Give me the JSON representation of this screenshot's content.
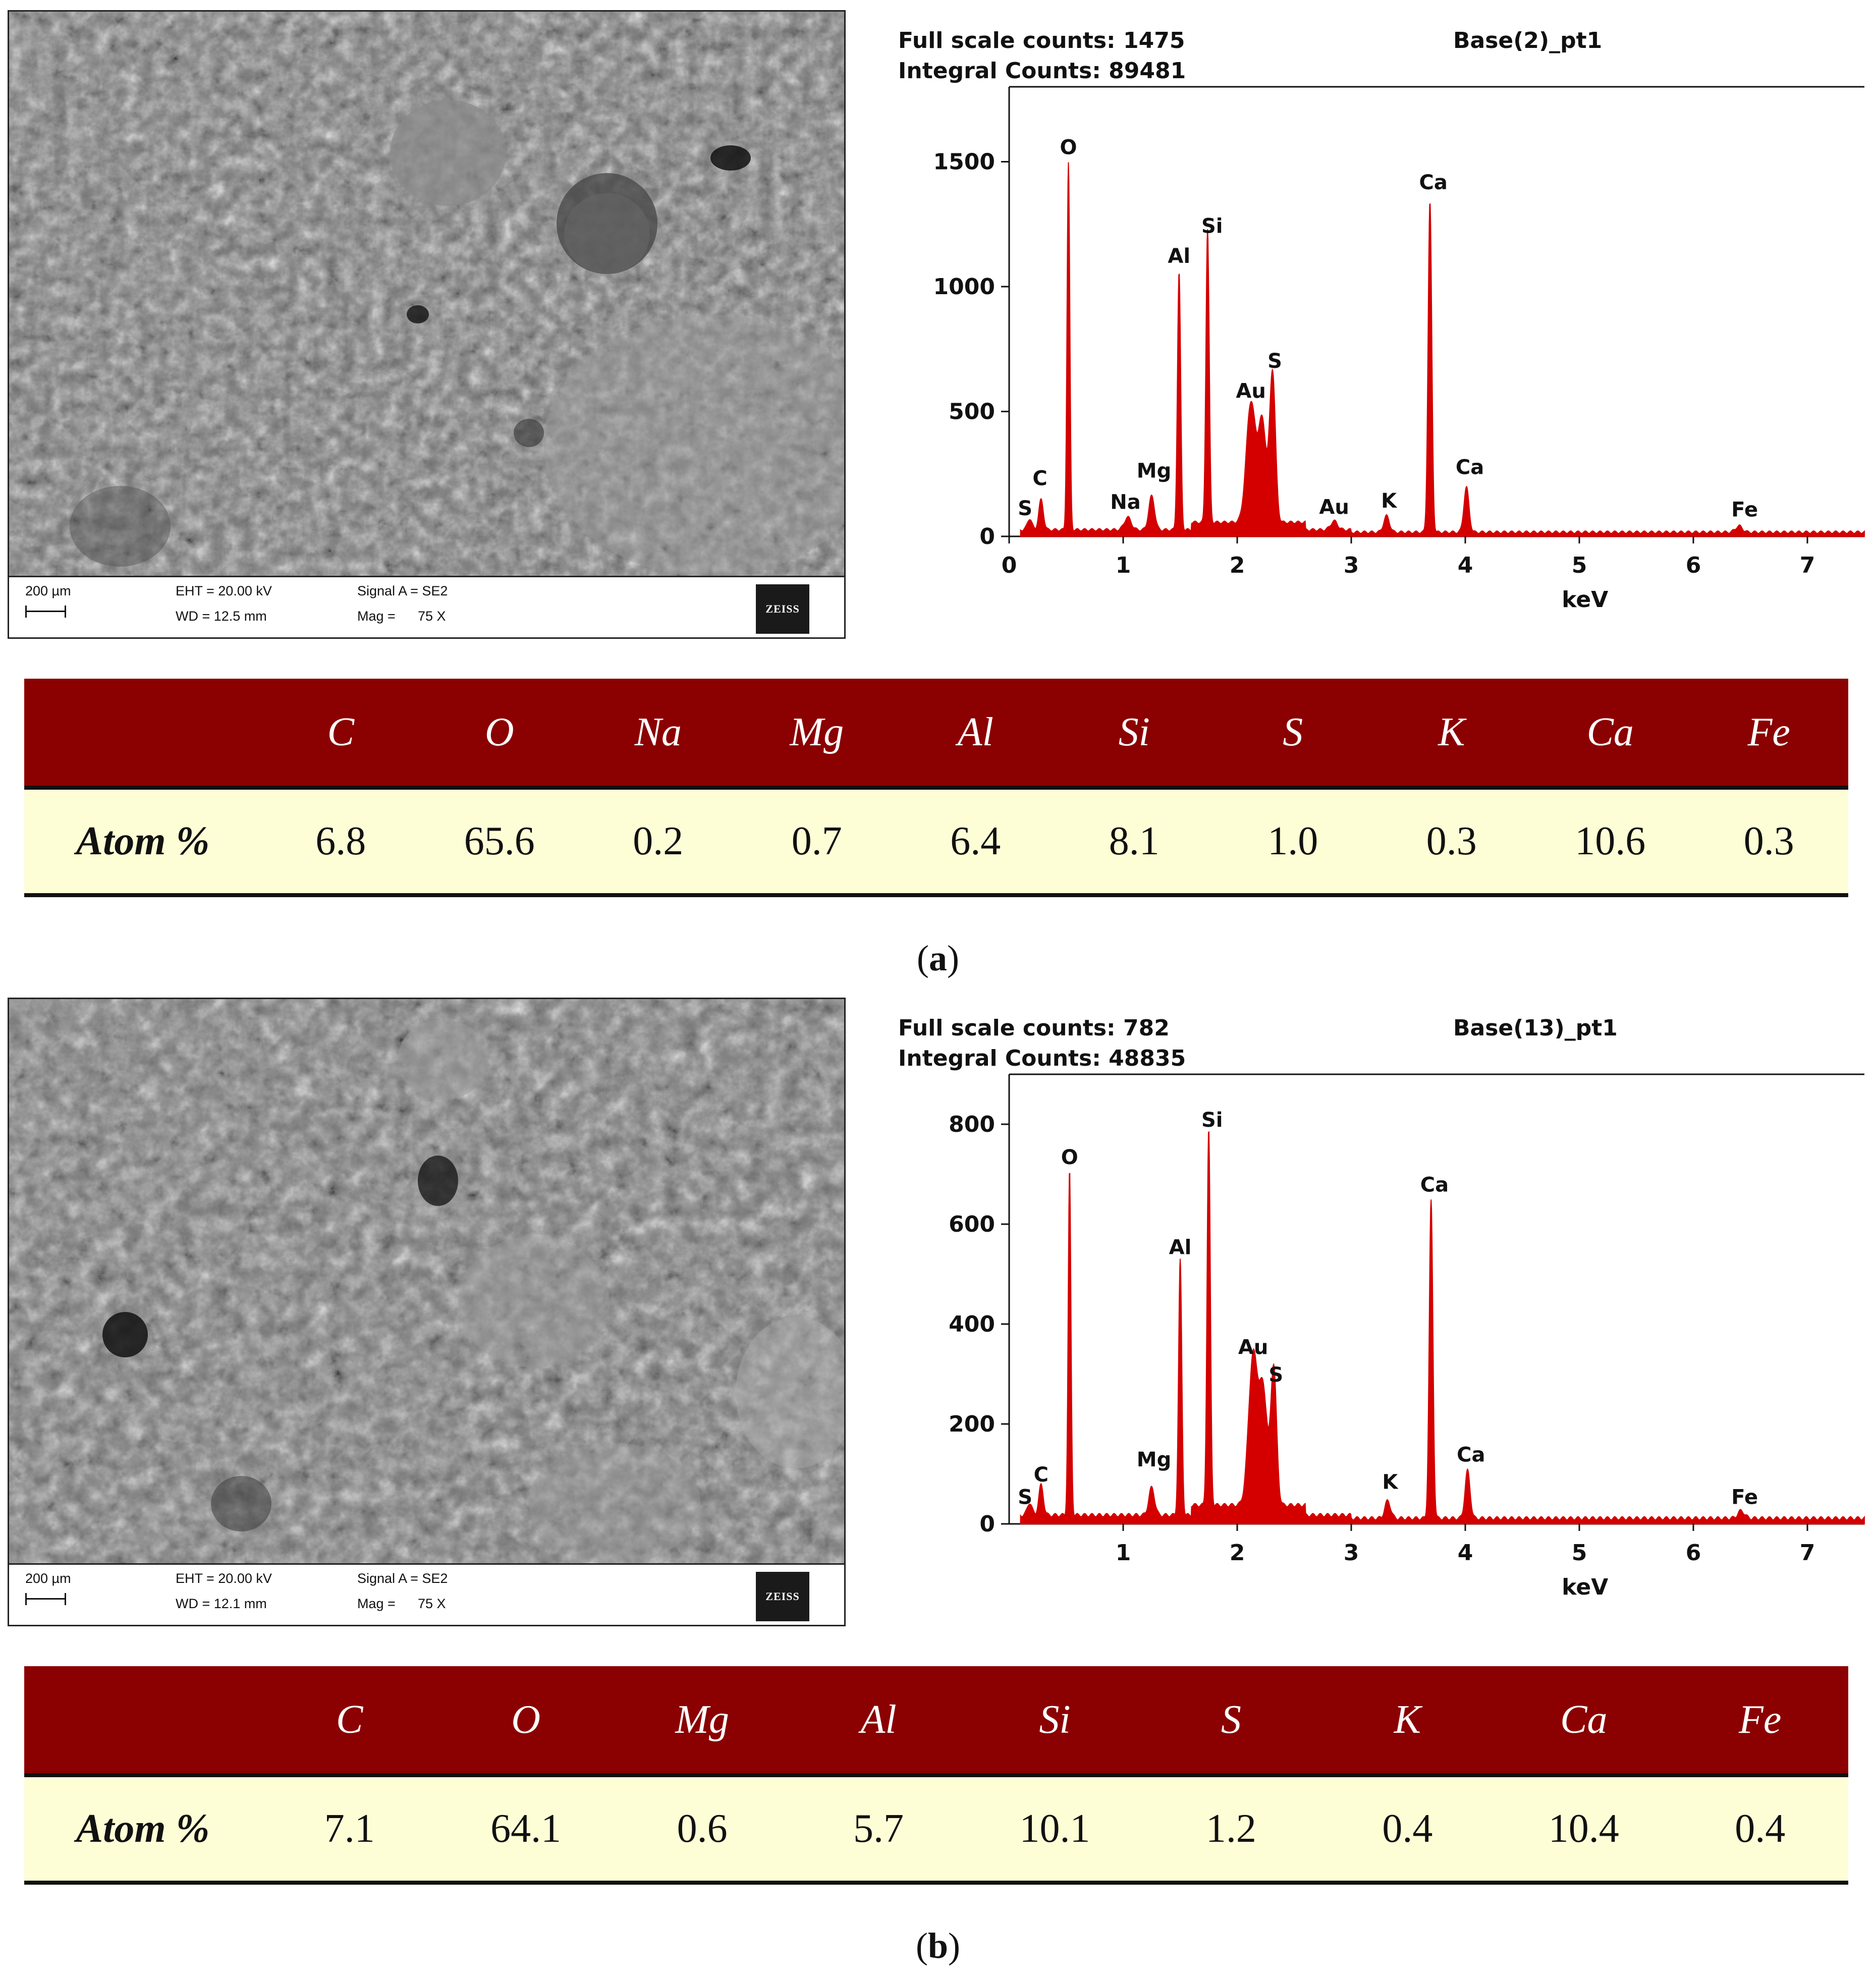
{
  "panels": [
    {
      "caption": "a",
      "sem": {
        "scale_label": "200 µm",
        "eht": "EHT = 20.00 kV",
        "wd": "WD = 12.5 mm",
        "signal": "Signal A = SE2",
        "mag_label": "Mag =",
        "mag_value": "75 X",
        "logo": "ZEISS"
      },
      "table": {
        "row_label": "Atom %",
        "elements": [
          "C",
          "O",
          "Na",
          "Mg",
          "Al",
          "Si",
          "S",
          "K",
          "Ca",
          "Fe"
        ],
        "values": [
          "6.8",
          "65.6",
          "0.2",
          "0.7",
          "6.4",
          "8.1",
          "1.0",
          "0.3",
          "10.6",
          "0.3"
        ]
      }
    },
    {
      "caption": "b",
      "sem": {
        "scale_label": "200 µm",
        "eht": "EHT = 20.00 kV",
        "wd": "WD = 12.1 mm",
        "signal": "Signal A = SE2",
        "mag_label": "Mag =",
        "mag_value": "75 X",
        "logo": "ZEISS"
      },
      "table": {
        "row_label": "Atom %",
        "elements": [
          "C",
          "O",
          "Mg",
          "Al",
          "Si",
          "S",
          "K",
          "Ca",
          "Fe"
        ],
        "values": [
          "7.1",
          "64.1",
          "0.6",
          "5.7",
          "10.1",
          "1.2",
          "0.4",
          "10.4",
          "0.4"
        ]
      }
    }
  ],
  "chart_data": [
    {
      "type": "area",
      "header_left_1": "Full scale counts: 1475",
      "header_left_2": "Integral Counts: 89481",
      "header_right": "Base(2)_pt1",
      "xlabel": "keV",
      "xlim": [
        0,
        7.5
      ],
      "ylim": [
        0,
        1800
      ],
      "xticks": [
        0,
        1,
        2,
        3,
        4,
        5,
        6,
        7
      ],
      "yticks": [
        0,
        500,
        1000,
        1500
      ],
      "baseline": 12,
      "color": "#d40000",
      "peaks": [
        {
          "x": 0.18,
          "y": 45,
          "w": 0.02
        },
        {
          "x": 0.28,
          "y": 120,
          "w": 0.02
        },
        {
          "x": 0.52,
          "y": 1470,
          "w": 0.012
        },
        {
          "x": 1.04,
          "y": 50,
          "w": 0.03
        },
        {
          "x": 1.25,
          "y": 135,
          "w": 0.025
        },
        {
          "x": 1.49,
          "y": 1030,
          "w": 0.014
        },
        {
          "x": 1.74,
          "y": 1175,
          "w": 0.014
        },
        {
          "x": 2.12,
          "y": 480,
          "w": 0.04
        },
        {
          "x": 2.22,
          "y": 400,
          "w": 0.035
        },
        {
          "x": 2.31,
          "y": 600,
          "w": 0.025
        },
        {
          "x": 2.85,
          "y": 35,
          "w": 0.03
        },
        {
          "x": 3.31,
          "y": 65,
          "w": 0.025
        },
        {
          "x": 3.69,
          "y": 1320,
          "w": 0.016
        },
        {
          "x": 4.01,
          "y": 180,
          "w": 0.022
        },
        {
          "x": 6.4,
          "y": 25,
          "w": 0.03
        }
      ],
      "labels": [
        {
          "text": "S",
          "x": 0.14,
          "y": 85
        },
        {
          "text": "C",
          "x": 0.27,
          "y": 205
        },
        {
          "text": "O",
          "x": 0.52,
          "y": 1530
        },
        {
          "text": "Na",
          "x": 1.02,
          "y": 110
        },
        {
          "text": "Mg",
          "x": 1.27,
          "y": 235
        },
        {
          "text": "Al",
          "x": 1.49,
          "y": 1095
        },
        {
          "text": "Si",
          "x": 1.78,
          "y": 1215
        },
        {
          "text": "Au",
          "x": 2.12,
          "y": 555
        },
        {
          "text": "S",
          "x": 2.33,
          "y": 675
        },
        {
          "text": "Au",
          "x": 2.85,
          "y": 90
        },
        {
          "text": "K",
          "x": 3.33,
          "y": 115
        },
        {
          "text": "Ca",
          "x": 3.72,
          "y": 1390
        },
        {
          "text": "Ca",
          "x": 4.04,
          "y": 250
        },
        {
          "text": "Fe",
          "x": 6.45,
          "y": 80
        }
      ]
    },
    {
      "type": "area",
      "header_left_1": "Full scale counts: 782",
      "header_left_2": "Integral Counts: 48835",
      "header_right": "Base(13)_pt1",
      "xlabel": "keV",
      "xlim": [
        0,
        7.5
      ],
      "ylim": [
        0,
        900
      ],
      "xticks": [
        1,
        2,
        3,
        4,
        5,
        6,
        7
      ],
      "yticks": [
        0,
        200,
        400,
        600,
        800
      ],
      "baseline": 8,
      "color": "#d40000",
      "peaks": [
        {
          "x": 0.18,
          "y": 25,
          "w": 0.02
        },
        {
          "x": 0.28,
          "y": 60,
          "w": 0.02
        },
        {
          "x": 0.53,
          "y": 690,
          "w": 0.012
        },
        {
          "x": 1.25,
          "y": 55,
          "w": 0.025
        },
        {
          "x": 1.5,
          "y": 510,
          "w": 0.014
        },
        {
          "x": 1.75,
          "y": 752,
          "w": 0.014
        },
        {
          "x": 2.14,
          "y": 300,
          "w": 0.04
        },
        {
          "x": 2.23,
          "y": 220,
          "w": 0.035
        },
        {
          "x": 2.32,
          "y": 275,
          "w": 0.025
        },
        {
          "x": 3.32,
          "y": 35,
          "w": 0.025
        },
        {
          "x": 3.7,
          "y": 635,
          "w": 0.016
        },
        {
          "x": 4.02,
          "y": 95,
          "w": 0.022
        },
        {
          "x": 6.42,
          "y": 15,
          "w": 0.03
        }
      ],
      "labels": [
        {
          "text": "S",
          "x": 0.14,
          "y": 40
        },
        {
          "text": "C",
          "x": 0.28,
          "y": 85
        },
        {
          "text": "O",
          "x": 0.53,
          "y": 720
        },
        {
          "text": "Mg",
          "x": 1.27,
          "y": 115
        },
        {
          "text": "Al",
          "x": 1.5,
          "y": 540
        },
        {
          "text": "Si",
          "x": 1.78,
          "y": 795
        },
        {
          "text": "Au",
          "x": 2.14,
          "y": 340
        },
        {
          "text": "S",
          "x": 2.34,
          "y": 285
        },
        {
          "text": "K",
          "x": 3.34,
          "y": 70
        },
        {
          "text": "Ca",
          "x": 3.73,
          "y": 665
        },
        {
          "text": "Ca",
          "x": 4.05,
          "y": 125
        },
        {
          "text": "Fe",
          "x": 6.45,
          "y": 40
        }
      ]
    }
  ]
}
